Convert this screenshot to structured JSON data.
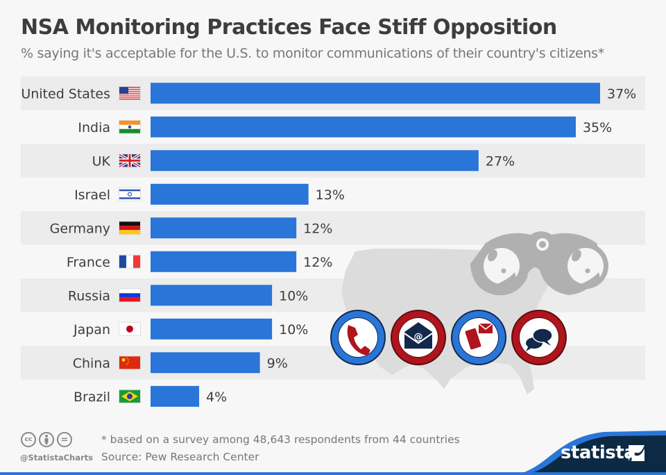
{
  "header": {
    "title": "NSA Monitoring Practices Face Stiff Opposition",
    "subtitle": "% saying it's acceptable for the U.S. to monitor communications of their country's citizens*"
  },
  "chart_data": {
    "type": "bar",
    "orientation": "horizontal",
    "title": "NSA Monitoring Practices Face Stiff Opposition",
    "subtitle": "% saying it's acceptable for the U.S. to monitor communications of their country's citizens*",
    "xlabel": "",
    "ylabel": "",
    "unit": "%",
    "categories": [
      "United States",
      "India",
      "UK",
      "Israel",
      "Germany",
      "France",
      "Russia",
      "Japan",
      "China",
      "Brazil"
    ],
    "values": [
      37,
      35,
      27,
      13,
      12,
      12,
      10,
      10,
      9,
      4
    ],
    "value_labels": [
      "37%",
      "35%",
      "27%",
      "13%",
      "12%",
      "12%",
      "10%",
      "10%",
      "9%",
      "4%"
    ],
    "flags": [
      "us-flag-icon",
      "india-flag-icon",
      "uk-flag-icon",
      "israel-flag-icon",
      "germany-flag-icon",
      "france-flag-icon",
      "russia-flag-icon",
      "japan-flag-icon",
      "china-flag-icon",
      "brazil-flag-icon"
    ],
    "xlim": [
      0,
      37
    ],
    "grid": false,
    "legend": "none",
    "bar_color": "#2a75d8",
    "stripe_color": "#ececec"
  },
  "illustration": {
    "icons": [
      "binoculars-icon",
      "us-map-silhouette",
      "phone-icon",
      "email-icon",
      "mobile-message-icon",
      "chat-bubbles-icon"
    ]
  },
  "footer": {
    "note": "* based on a survey among 48,643 respondents from 44 countries",
    "source": "Source: Pew Research Center",
    "handle": "@StatistaCharts",
    "license_icons": [
      "cc-icon",
      "by-attribution-icon",
      "no-derivatives-icon"
    ],
    "cc_label": "cc",
    "nd_label": "=",
    "brand": "statista",
    "brand_color": "#0c2a44",
    "accent_color": "#2a75d8"
  }
}
